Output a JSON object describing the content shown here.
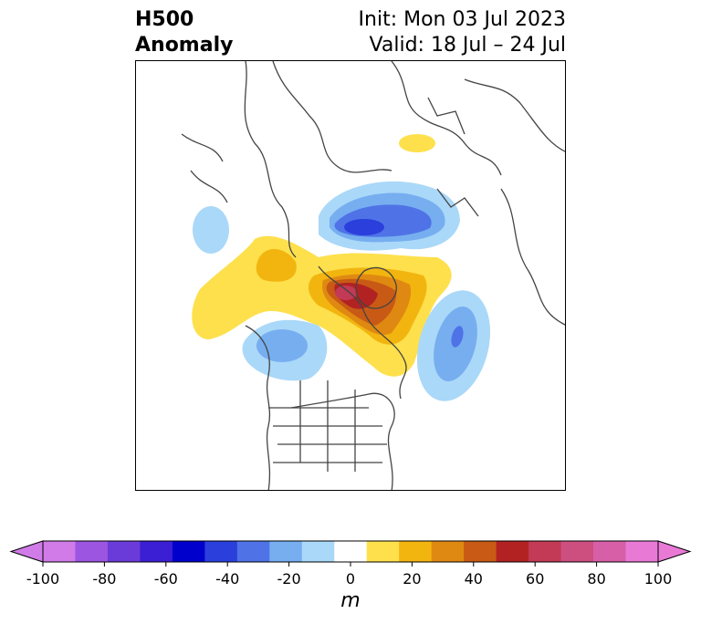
{
  "title": {
    "left_line1": "H500",
    "left_line2": "Anomaly",
    "right_line1": "Init: Mon 03 Jul 2023",
    "right_line2": "Valid: 18 Jul – 24 Jul"
  },
  "colorbar": {
    "unit": "m",
    "min": -100,
    "max": 100,
    "step": 10,
    "ticks": [
      "-100",
      "-80",
      "-60",
      "-40",
      "-20",
      "0",
      "20",
      "40",
      "60",
      "80",
      "100"
    ],
    "colors": [
      "#d07be8",
      "#9b55e0",
      "#6a3bd8",
      "#3a1fd4",
      "#0000cc",
      "#2a3fdc",
      "#4f73e6",
      "#76aef0",
      "#aad8f8",
      "#ffffff",
      "#fde04c",
      "#f2b50f",
      "#df8912",
      "#c85a15",
      "#b22222",
      "#c23a55",
      "#cc4f7f",
      "#d65fa8",
      "#e87ad6"
    ],
    "extend": "both"
  },
  "map": {
    "projection": "polar stereographic (North America / Arctic)",
    "variable": "500 hPa geopotential height anomaly"
  }
}
